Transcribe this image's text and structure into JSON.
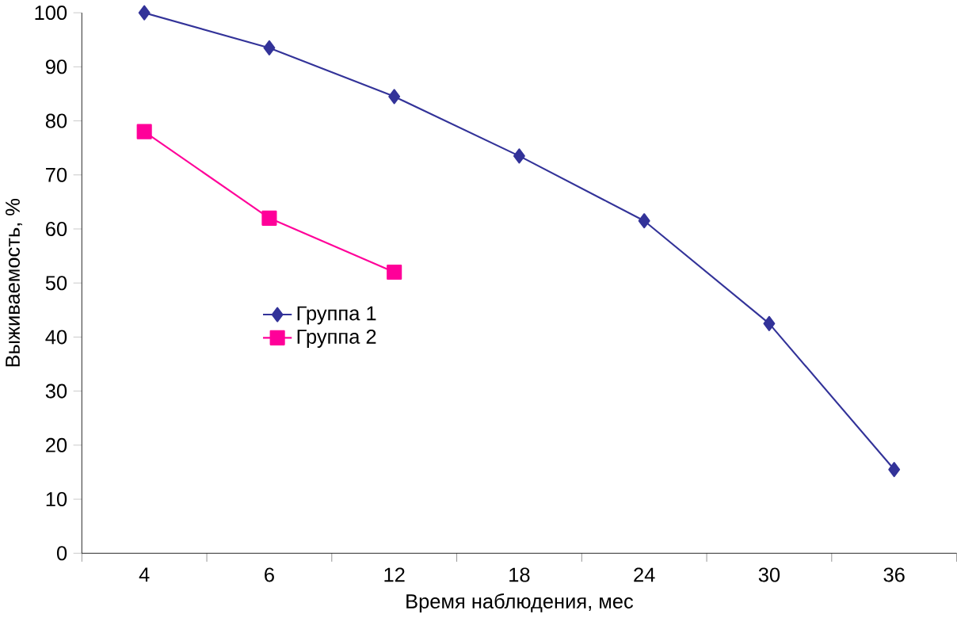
{
  "chart_data": {
    "type": "line",
    "xlabel": "Время наблюдения, мес",
    "ylabel": "Выживаемость, %",
    "categories": [
      "4",
      "6",
      "12",
      "18",
      "24",
      "30",
      "36"
    ],
    "series": [
      {
        "name": "Группа 1",
        "color": "#333399",
        "marker": "diamond",
        "values": [
          100,
          93.5,
          84.5,
          73.5,
          61.5,
          42.5,
          15.5
        ]
      },
      {
        "name": "Группа 2",
        "color": "#ff0099",
        "marker": "square",
        "values": [
          78,
          62,
          52,
          null,
          null,
          null,
          null
        ]
      }
    ],
    "ylim": [
      0,
      100
    ],
    "yticks": [
      0,
      10,
      20,
      30,
      40,
      50,
      60,
      70,
      80,
      90,
      100
    ],
    "grid": false,
    "legend": "left",
    "line_style": "solid"
  }
}
